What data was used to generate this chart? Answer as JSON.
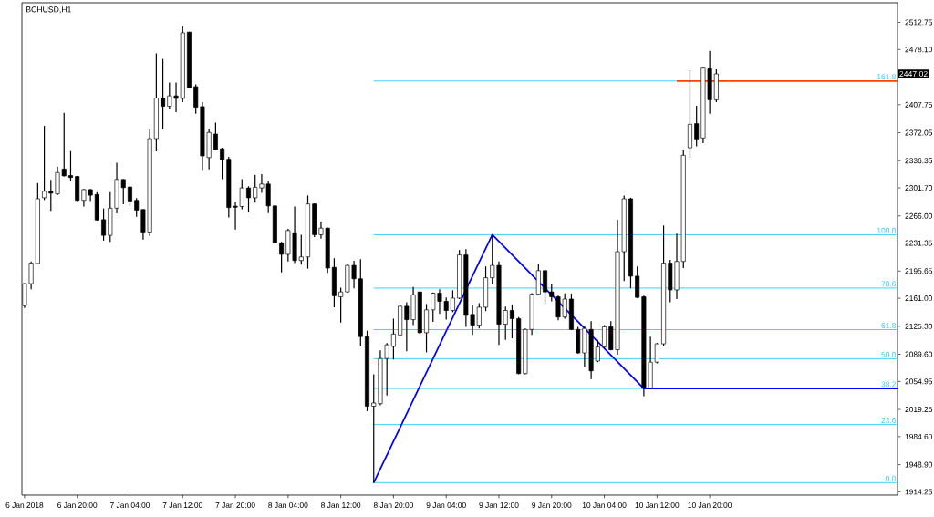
{
  "chart_data": {
    "type": "candlestick",
    "title": "BCHUSD,H1",
    "x": [
      "2018-01-06T12:00",
      "2018-01-06T13:00",
      "2018-01-06T14:00",
      "2018-01-06T15:00",
      "2018-01-06T16:00",
      "2018-01-06T17:00",
      "2018-01-06T18:00",
      "2018-01-06T19:00",
      "2018-01-06T20:00",
      "2018-01-06T21:00",
      "2018-01-06T22:00",
      "2018-01-06T23:00",
      "2018-01-07T00:00",
      "2018-01-07T01:00",
      "2018-01-07T02:00",
      "2018-01-07T03:00",
      "2018-01-07T04:00",
      "2018-01-07T05:00",
      "2018-01-07T06:00",
      "2018-01-07T07:00",
      "2018-01-07T08:00",
      "2018-01-07T09:00",
      "2018-01-07T10:00",
      "2018-01-07T11:00",
      "2018-01-07T12:00",
      "2018-01-07T13:00",
      "2018-01-07T14:00",
      "2018-01-07T15:00",
      "2018-01-07T16:00",
      "2018-01-07T17:00",
      "2018-01-07T18:00",
      "2018-01-07T19:00",
      "2018-01-07T20:00",
      "2018-01-07T21:00",
      "2018-01-07T22:00",
      "2018-01-07T23:00",
      "2018-01-08T00:00",
      "2018-01-08T01:00",
      "2018-01-08T02:00",
      "2018-01-08T03:00",
      "2018-01-08T04:00",
      "2018-01-08T05:00",
      "2018-01-08T06:00",
      "2018-01-08T07:00",
      "2018-01-08T08:00",
      "2018-01-08T09:00",
      "2018-01-08T10:00",
      "2018-01-08T11:00",
      "2018-01-08T12:00",
      "2018-01-08T13:00",
      "2018-01-08T14:00",
      "2018-01-08T15:00",
      "2018-01-08T16:00",
      "2018-01-08T17:00",
      "2018-01-08T18:00",
      "2018-01-08T19:00",
      "2018-01-08T20:00",
      "2018-01-08T21:00",
      "2018-01-08T22:00",
      "2018-01-08T23:00",
      "2018-01-09T00:00",
      "2018-01-09T01:00",
      "2018-01-09T02:00",
      "2018-01-09T03:00",
      "2018-01-09T04:00",
      "2018-01-09T05:00",
      "2018-01-09T06:00",
      "2018-01-09T07:00",
      "2018-01-09T08:00",
      "2018-01-09T09:00",
      "2018-01-09T10:00",
      "2018-01-09T11:00",
      "2018-01-09T12:00",
      "2018-01-09T13:00",
      "2018-01-09T14:00",
      "2018-01-09T15:00",
      "2018-01-09T16:00",
      "2018-01-09T17:00",
      "2018-01-09T18:00",
      "2018-01-09T19:00",
      "2018-01-09T20:00",
      "2018-01-09T21:00",
      "2018-01-09T22:00",
      "2018-01-09T23:00",
      "2018-01-10T00:00",
      "2018-01-10T01:00",
      "2018-01-10T02:00",
      "2018-01-10T03:00",
      "2018-01-10T04:00",
      "2018-01-10T05:00",
      "2018-01-10T06:00",
      "2018-01-10T07:00",
      "2018-01-10T08:00",
      "2018-01-10T09:00",
      "2018-01-10T10:00",
      "2018-01-10T11:00",
      "2018-01-10T12:00",
      "2018-01-10T13:00",
      "2018-01-10T14:00",
      "2018-01-10T15:00",
      "2018-01-10T16:00",
      "2018-01-10T17:00",
      "2018-01-10T18:00",
      "2018-01-10T19:00",
      "2018-01-10T20:00",
      "2018-01-10T21:00"
    ],
    "ohlc": [
      [
        2151.6,
        2180.4,
        2148.7,
        2179.6
      ],
      [
        2179.6,
        2207.9,
        2172.5,
        2205.8
      ],
      [
        2205.4,
        2307.8,
        2204.6,
        2287.8
      ],
      [
        2289.1,
        2380.7,
        2286.2,
        2297.4
      ],
      [
        2297.0,
        2312.0,
        2272.4,
        2294.9
      ],
      [
        2294.1,
        2328.7,
        2292.4,
        2321.2
      ],
      [
        2325.7,
        2397.4,
        2316.2,
        2317.0
      ],
      [
        2317.4,
        2348.6,
        2309.9,
        2314.9
      ],
      [
        2316.2,
        2317.0,
        2284.9,
        2285.8
      ],
      [
        2285.8,
        2300.3,
        2277.9,
        2299.5
      ],
      [
        2299.5,
        2300.3,
        2284.9,
        2292.4
      ],
      [
        2293.3,
        2296.2,
        2259.9,
        2260.8
      ],
      [
        2261.2,
        2275.4,
        2234.5,
        2241.2
      ],
      [
        2241.2,
        2296.2,
        2232.9,
        2275.8
      ],
      [
        2275.8,
        2333.7,
        2269.1,
        2312.4
      ],
      [
        2312.4,
        2312.8,
        2280.8,
        2302.0
      ],
      [
        2302.8,
        2303.7,
        2278.7,
        2284.9
      ],
      [
        2285.8,
        2288.7,
        2264.9,
        2273.3
      ],
      [
        2274.1,
        2274.5,
        2235.8,
        2245.4
      ],
      [
        2245.4,
        2377.4,
        2240.4,
        2364.5
      ],
      [
        2364.5,
        2473.2,
        2348.2,
        2416.1
      ],
      [
        2416.1,
        2466.1,
        2376.6,
        2405.7
      ],
      [
        2405.7,
        2436.1,
        2401.6,
        2419.0
      ],
      [
        2419.0,
        2436.1,
        2398.2,
        2415.7
      ],
      [
        2415.7,
        2507.8,
        2411.1,
        2499.4
      ],
      [
        2500.3,
        2500.7,
        2428.6,
        2429.5
      ],
      [
        2430.7,
        2433.6,
        2396.1,
        2404.5
      ],
      [
        2405.3,
        2411.1,
        2324.5,
        2342.4
      ],
      [
        2340.3,
        2376.6,
        2325.3,
        2372.4
      ],
      [
        2370.3,
        2384.9,
        2349.5,
        2350.7
      ],
      [
        2351.6,
        2352.8,
        2312.8,
        2337.8
      ],
      [
        2338.2,
        2341.2,
        2264.1,
        2276.6
      ],
      [
        2278.3,
        2283.7,
        2248.7,
        2277.0
      ],
      [
        2277.9,
        2312.8,
        2274.5,
        2301.6
      ],
      [
        2301.6,
        2303.7,
        2270.4,
        2289.1
      ],
      [
        2289.1,
        2318.3,
        2282.9,
        2302.4
      ],
      [
        2301.6,
        2319.1,
        2295.3,
        2306.6
      ],
      [
        2306.6,
        2309.9,
        2269.5,
        2278.7
      ],
      [
        2278.7,
        2279.5,
        2230.8,
        2231.6
      ],
      [
        2231.6,
        2232.9,
        2194.1,
        2217.0
      ],
      [
        2217.0,
        2249.5,
        2207.9,
        2247.4
      ],
      [
        2244.5,
        2277.9,
        2205.8,
        2209.1
      ],
      [
        2209.1,
        2242.0,
        2203.7,
        2213.7
      ],
      [
        2213.7,
        2292.0,
        2198.7,
        2281.2
      ],
      [
        2281.2,
        2282.0,
        2239.1,
        2242.0
      ],
      [
        2242.0,
        2258.7,
        2237.0,
        2250.4
      ],
      [
        2250.4,
        2250.8,
        2193.3,
        2199.5
      ],
      [
        2200.4,
        2212.0,
        2149.6,
        2164.2
      ],
      [
        2162.9,
        2174.6,
        2130.0,
        2169.1
      ],
      [
        2169.1,
        2203.7,
        2168.3,
        2202.9
      ],
      [
        2202.9,
        2208.7,
        2173.7,
        2185.8
      ],
      [
        2185.8,
        2210.8,
        2099.6,
        2112.1
      ],
      [
        2112.1,
        2119.6,
        2017.1,
        2023.4
      ],
      [
        2023.4,
        2064.2,
        1925.5,
        2027.5
      ],
      [
        2026.7,
        2094.6,
        2024.6,
        2084.2
      ],
      [
        2084.2,
        2103.8,
        2037.1,
        2101.7
      ],
      [
        2099.6,
        2135.0,
        2082.9,
        2115.4
      ],
      [
        2114.2,
        2151.7,
        2112.9,
        2150.8
      ],
      [
        2150.8,
        2155.8,
        2093.3,
        2133.7
      ],
      [
        2133.7,
        2175.4,
        2126.7,
        2165.4
      ],
      [
        2169.1,
        2169.1,
        2115.4,
        2117.1
      ],
      [
        2117.1,
        2153.7,
        2092.1,
        2146.2
      ],
      [
        2146.2,
        2168.3,
        2130.8,
        2167.5
      ],
      [
        2167.5,
        2172.5,
        2141.2,
        2157.1
      ],
      [
        2157.1,
        2162.1,
        2133.7,
        2145.4
      ],
      [
        2145.4,
        2171.2,
        2143.3,
        2161.2
      ],
      [
        2161.2,
        2222.5,
        2160.0,
        2216.2
      ],
      [
        2216.2,
        2223.7,
        2124.6,
        2139.2
      ],
      [
        2140.4,
        2151.7,
        2114.2,
        2126.7
      ],
      [
        2126.7,
        2154.6,
        2122.5,
        2149.6
      ],
      [
        2149.6,
        2201.6,
        2144.6,
        2187.1
      ],
      [
        2187.1,
        2242.0,
        2178.7,
        2202.9
      ],
      [
        2202.9,
        2207.9,
        2101.7,
        2127.9
      ],
      [
        2127.9,
        2150.4,
        2107.9,
        2145.4
      ],
      [
        2145.4,
        2152.5,
        2110.0,
        2135.0
      ],
      [
        2135.0,
        2137.1,
        2064.2,
        2065.0
      ],
      [
        2065.0,
        2122.5,
        2064.2,
        2121.3
      ],
      [
        2121.3,
        2167.5,
        2114.2,
        2166.2
      ],
      [
        2166.2,
        2204.6,
        2165.0,
        2196.2
      ],
      [
        2196.2,
        2197.5,
        2153.7,
        2169.1
      ],
      [
        2169.1,
        2178.7,
        2157.1,
        2162.9
      ],
      [
        2162.9,
        2164.2,
        2132.9,
        2137.1
      ],
      [
        2137.1,
        2167.1,
        2135.0,
        2160.0
      ],
      [
        2160.0,
        2167.1,
        2120.4,
        2121.3
      ],
      [
        2121.3,
        2124.6,
        2090.4,
        2091.3
      ],
      [
        2091.3,
        2125.4,
        2073.8,
        2122.5
      ],
      [
        2121.3,
        2131.7,
        2057.9,
        2068.4
      ],
      [
        2080.9,
        2107.9,
        2079.6,
        2098.8
      ],
      [
        2098.8,
        2126.7,
        2097.5,
        2124.6
      ],
      [
        2124.6,
        2131.7,
        2094.6,
        2095.4
      ],
      [
        2095.4,
        2261.2,
        2089.2,
        2220.4
      ],
      [
        2220.4,
        2292.0,
        2182.9,
        2287.8
      ],
      [
        2287.8,
        2289.1,
        2173.7,
        2189.1
      ],
      [
        2189.1,
        2201.6,
        2161.2,
        2162.1
      ],
      [
        2162.9,
        2164.2,
        2036.3,
        2046.3
      ],
      [
        2046.3,
        2112.1,
        2045.4,
        2079.6
      ],
      [
        2079.6,
        2103.8,
        2077.9,
        2102.9
      ],
      [
        2102.9,
        2253.7,
        2100.4,
        2205.8
      ],
      [
        2205.8,
        2210.0,
        2155.8,
        2171.6
      ],
      [
        2171.6,
        2243.3,
        2160.0,
        2207.9
      ],
      [
        2207.9,
        2349.5,
        2199.5,
        2343.2
      ],
      [
        2352.8,
        2451.5,
        2340.3,
        2382.8
      ],
      [
        2383.6,
        2406.5,
        2354.5,
        2364.1
      ],
      [
        2365.3,
        2454.9,
        2358.7,
        2454.4
      ],
      [
        2453.6,
        2476.5,
        2396.1,
        2414.0
      ],
      [
        2414.0,
        2452.8,
        2411.1,
        2447.02
      ]
    ],
    "series": [
      {
        "type": "line",
        "color": "#0000ff",
        "x": [
          "2018-01-08T17:00",
          "2018-01-09T11:00",
          "2018-01-10T10:00",
          "2018-01-12T00:30"
        ],
        "values": [
          1926,
          2242,
          2046,
          2046
        ]
      },
      {
        "type": "line",
        "color": "#ff4500",
        "x": [
          "2018-01-10T15:00",
          "2018-01-12T00:30"
        ],
        "values": [
          2438,
          2438
        ]
      }
    ],
    "ref_lines": [
      {
        "axis": "y",
        "value": 1926,
        "color": "#33ccff"
      },
      {
        "axis": "y",
        "value": 2000,
        "color": "#33ccff"
      },
      {
        "axis": "y",
        "value": 2046,
        "color": "#33ccff"
      },
      {
        "axis": "y",
        "value": 2084,
        "color": "#33ccff"
      },
      {
        "axis": "y",
        "value": 2121,
        "color": "#33ccff"
      },
      {
        "axis": "y",
        "value": 2174,
        "color": "#33ccff"
      },
      {
        "axis": "y",
        "value": 2242,
        "color": "#33ccff"
      },
      {
        "axis": "y",
        "value": 2438,
        "color": "#33ccff"
      }
    ],
    "annotations": [
      "2447.02",
      {
        "text": "0.0",
        "y": 1926
      },
      {
        "text": "23.6",
        "y": 2000
      },
      {
        "text": "38.2",
        "y": 2046
      },
      {
        "text": "50.0",
        "y": 2084
      },
      {
        "text": "61.8",
        "y": 2121
      },
      {
        "text": "78.6",
        "y": 2174
      },
      {
        "text": "100.0",
        "y": 2242
      },
      {
        "text": "161.8",
        "y": 2438
      }
    ],
    "xlim": [
      "2018-01-06T11:36",
      "2018-01-12T00:30"
    ],
    "ylim": [
      1910.1,
      2537.7
    ],
    "xticks": [
      {
        "value": "2018-01-06T12:00",
        "label": "6 Jan 2018"
      },
      {
        "value": "2018-01-06T20:00",
        "label": "6 Jan 20:00"
      },
      {
        "value": "2018-01-07T04:00",
        "label": "7 Jan 04:00"
      },
      {
        "value": "2018-01-07T12:00",
        "label": "7 Jan 12:00"
      },
      {
        "value": "2018-01-07T20:00",
        "label": "7 Jan 20:00"
      },
      {
        "value": "2018-01-08T04:00",
        "label": "8 Jan 04:00"
      },
      {
        "value": "2018-01-08T12:00",
        "label": "8 Jan 12:00"
      },
      {
        "value": "2018-01-08T20:00",
        "label": "8 Jan 20:00"
      },
      {
        "value": "2018-01-09T04:00",
        "label": "9 Jan 04:00"
      },
      {
        "value": "2018-01-09T12:00",
        "label": "9 Jan 12:00"
      },
      {
        "value": "2018-01-09T20:00",
        "label": "9 Jan 20:00"
      },
      {
        "value": "2018-01-10T04:00",
        "label": "10 Jan 04:00"
      },
      {
        "value": "2018-01-10T12:00",
        "label": "10 Jan 12:00"
      },
      {
        "value": "2018-01-10T20:00",
        "label": "10 Jan 20:00"
      }
    ],
    "yticks": [
      {
        "value": 1914.25,
        "label": "1914.25"
      },
      {
        "value": 1948.9,
        "label": "1948.90"
      },
      {
        "value": 1984.6,
        "label": "1984.60"
      },
      {
        "value": 2019.25,
        "label": "2019.25"
      },
      {
        "value": 2054.95,
        "label": "2054.95"
      },
      {
        "value": 2089.6,
        "label": "2089.60"
      },
      {
        "value": 2125.3,
        "label": "2125.30"
      },
      {
        "value": 2161.0,
        "label": "2161.00"
      },
      {
        "value": 2195.65,
        "label": "2195.65"
      },
      {
        "value": 2231.35,
        "label": "2231.35"
      },
      {
        "value": 2266.0,
        "label": "2266.00"
      },
      {
        "value": 2301.7,
        "label": "2301.70"
      },
      {
        "value": 2336.35,
        "label": "2336.35"
      },
      {
        "value": 2372.05,
        "label": "2372.05"
      },
      {
        "value": 2407.75,
        "label": "2407.75"
      },
      {
        "value": 2478.1,
        "label": "2478.10"
      },
      {
        "value": 2512.75,
        "label": "2512.75"
      }
    ],
    "grid": false
  }
}
